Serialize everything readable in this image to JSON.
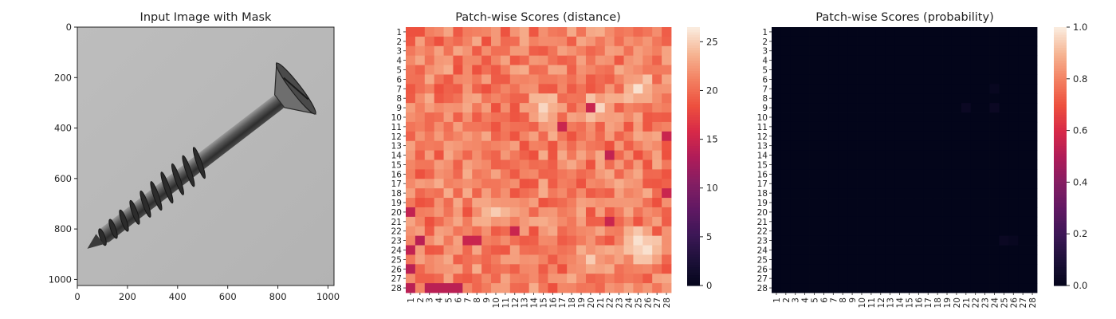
{
  "figure": {
    "panels": [
      {
        "title": "Input Image with Mask"
      },
      {
        "title": "Patch-wise Scores (distance)"
      },
      {
        "title": "Patch-wise Scores (probability)"
      }
    ]
  },
  "chart_data": [
    {
      "type": "image",
      "title": "Input Image with Mask",
      "xlim": [
        0,
        1024
      ],
      "ylim": [
        1024,
        0
      ],
      "xticks": [
        0,
        200,
        400,
        600,
        800,
        1000
      ],
      "yticks": [
        0,
        200,
        400,
        600,
        800,
        1000
      ],
      "content": "grayscale photo of a countersunk screw",
      "screw": {
        "head_center": [
          830,
          280
        ],
        "tip": [
          115,
          830
        ]
      },
      "colors": {
        "background": "#b9b9b9",
        "metal_dark": "#3a3a3a",
        "metal_light": "#8c8c8c"
      }
    },
    {
      "type": "heatmap",
      "title": "Patch-wise Scores (distance)",
      "rows": 28,
      "cols": 28,
      "row_labels": [
        "1",
        "2",
        "3",
        "4",
        "5",
        "6",
        "7",
        "8",
        "9",
        "10",
        "11",
        "12",
        "13",
        "14",
        "15",
        "16",
        "17",
        "18",
        "19",
        "20",
        "21",
        "22",
        "23",
        "24",
        "25",
        "26",
        "27",
        "28"
      ],
      "col_labels": [
        "1",
        "2",
        "3",
        "4",
        "5",
        "6",
        "7",
        "8",
        "9",
        "10",
        "11",
        "12",
        "13",
        "14",
        "15",
        "16",
        "17",
        "18",
        "19",
        "20",
        "21",
        "22",
        "23",
        "24",
        "25",
        "26",
        "27",
        "28"
      ],
      "colorbar": {
        "min": 0,
        "max": 26.5,
        "ticks": [
          0,
          5,
          10,
          15,
          20,
          25
        ],
        "colormap": "rocket"
      },
      "value_range": [
        12,
        26
      ],
      "typical_value": 21,
      "hotspots": [
        {
          "row": 9,
          "col": 15,
          "value": 25.5
        },
        {
          "row": 9,
          "col": 21,
          "value": 25.5
        },
        {
          "row": 7,
          "col": 25,
          "value": 26
        },
        {
          "row": 23,
          "col": 25,
          "value": 26
        },
        {
          "row": 24,
          "col": 26,
          "value": 26
        },
        {
          "row": 25,
          "col": 20,
          "value": 25
        },
        {
          "row": 20,
          "col": 10,
          "value": 25
        }
      ],
      "lowspots": [
        {
          "row": 28,
          "col": 1,
          "value": 14
        },
        {
          "row": 28,
          "col": 3,
          "value": 14
        },
        {
          "row": 28,
          "col": 4,
          "value": 14
        },
        {
          "row": 28,
          "col": 5,
          "value": 14
        },
        {
          "row": 28,
          "col": 6,
          "value": 14
        },
        {
          "row": 26,
          "col": 1,
          "value": 14
        },
        {
          "row": 24,
          "col": 1,
          "value": 14.5
        },
        {
          "row": 23,
          "col": 2,
          "value": 14
        },
        {
          "row": 20,
          "col": 1,
          "value": 14.5
        },
        {
          "row": 21,
          "col": 22,
          "value": 15
        },
        {
          "row": 14,
          "col": 22,
          "value": 14.5
        },
        {
          "row": 12,
          "col": 28,
          "value": 15
        },
        {
          "row": 11,
          "col": 17,
          "value": 15
        },
        {
          "row": 9,
          "col": 20,
          "value": 15
        },
        {
          "row": 18,
          "col": 28,
          "value": 15
        },
        {
          "row": 23,
          "col": 8,
          "value": 15
        },
        {
          "row": 23,
          "col": 7,
          "value": 15
        },
        {
          "row": 22,
          "col": 12,
          "value": 15
        }
      ]
    },
    {
      "type": "heatmap",
      "title": "Patch-wise Scores (probability)",
      "rows": 28,
      "cols": 28,
      "row_labels": [
        "1",
        "2",
        "3",
        "4",
        "5",
        "6",
        "7",
        "8",
        "9",
        "10",
        "11",
        "12",
        "13",
        "14",
        "15",
        "16",
        "17",
        "18",
        "19",
        "20",
        "21",
        "22",
        "23",
        "24",
        "25",
        "26",
        "27",
        "28"
      ],
      "col_labels": [
        "1",
        "2",
        "3",
        "4",
        "5",
        "6",
        "7",
        "8",
        "9",
        "10",
        "11",
        "12",
        "13",
        "14",
        "15",
        "16",
        "17",
        "18",
        "19",
        "20",
        "21",
        "22",
        "23",
        "24",
        "25",
        "26",
        "27",
        "28"
      ],
      "colorbar": {
        "min": 0.0,
        "max": 1.0,
        "ticks": [
          "0.0",
          "0.2",
          "0.4",
          "0.6",
          "0.8",
          "1.0"
        ],
        "colormap": "rocket"
      },
      "typical_value": 0.0,
      "faint_spots": [
        {
          "row": 9,
          "col": 21,
          "value": 0.03
        },
        {
          "row": 9,
          "col": 24,
          "value": 0.03
        },
        {
          "row": 7,
          "col": 24,
          "value": 0.02
        },
        {
          "row": 23,
          "col": 25,
          "value": 0.03
        },
        {
          "row": 23,
          "col": 26,
          "value": 0.02
        }
      ]
    }
  ]
}
